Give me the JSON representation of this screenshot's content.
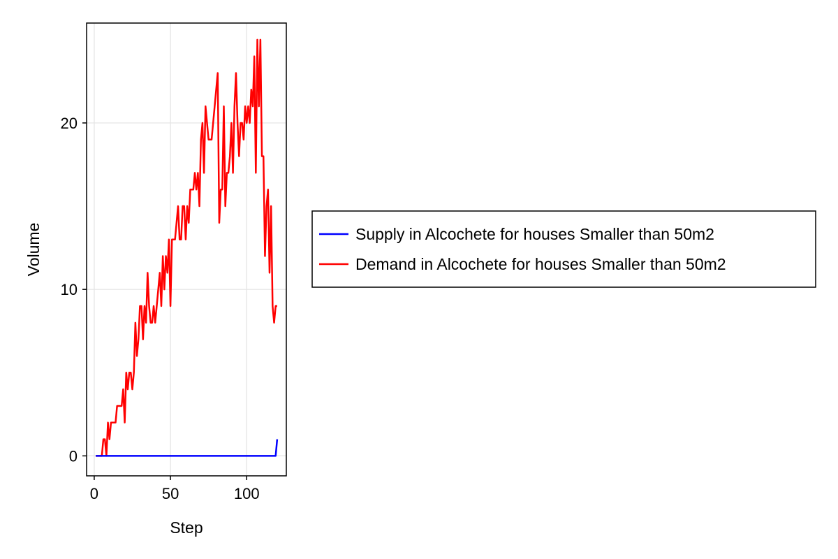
{
  "chart_data": {
    "type": "line",
    "title": "",
    "xlabel": "Step",
    "ylabel": "Volume",
    "xlim": [
      -5,
      126
    ],
    "ylim": [
      -1.2,
      26
    ],
    "xticks": [
      0,
      50,
      100
    ],
    "yticks": [
      0,
      10,
      20
    ],
    "grid": true,
    "legend_position": "right",
    "series": [
      {
        "name": "Supply in Alcochete for houses Smaller than 50m2",
        "color": "#0000ff",
        "x": [
          1,
          119,
          120
        ],
        "y": [
          0,
          0,
          1
        ]
      },
      {
        "name": "Demand in Alcochete for houses Smaller than 50m2",
        "color": "#ff0000",
        "x": [
          1,
          2,
          3,
          4,
          5,
          6,
          7,
          8,
          9,
          10,
          11,
          12,
          13,
          14,
          15,
          16,
          17,
          18,
          19,
          20,
          21,
          22,
          23,
          24,
          25,
          26,
          27,
          28,
          29,
          30,
          31,
          32,
          33,
          34,
          35,
          36,
          37,
          38,
          39,
          40,
          41,
          42,
          43,
          44,
          45,
          46,
          47,
          48,
          49,
          50,
          51,
          52,
          53,
          54,
          55,
          56,
          57,
          58,
          59,
          60,
          61,
          62,
          63,
          64,
          65,
          66,
          67,
          68,
          69,
          70,
          71,
          72,
          73,
          74,
          75,
          76,
          77,
          78,
          79,
          80,
          81,
          82,
          83,
          84,
          85,
          86,
          87,
          88,
          89,
          90,
          91,
          92,
          93,
          94,
          95,
          96,
          97,
          98,
          99,
          100,
          101,
          102,
          103,
          104,
          105,
          106,
          107,
          108,
          109,
          110,
          111,
          112,
          113,
          114,
          115,
          116,
          117,
          118,
          119,
          120
        ],
        "y": [
          0,
          0,
          0,
          0,
          0,
          1,
          1,
          0,
          2,
          1,
          2,
          2,
          2,
          2,
          3,
          3,
          3,
          3,
          4,
          2,
          5,
          4,
          5,
          5,
          4,
          5,
          8,
          6,
          7,
          9,
          9,
          7,
          9,
          8,
          11,
          9,
          8,
          8,
          9,
          8,
          9,
          10,
          11,
          9,
          12,
          10,
          12,
          11,
          13,
          9,
          13,
          13,
          13,
          14,
          15,
          13,
          13,
          15,
          15,
          13,
          15,
          14,
          16,
          16,
          16,
          17,
          16,
          17,
          15,
          19,
          20,
          17,
          21,
          20,
          19,
          19,
          19,
          20,
          21,
          22,
          23,
          14,
          16,
          16,
          21,
          15,
          17,
          17,
          18,
          20,
          17,
          21,
          23,
          20,
          18,
          20,
          20,
          19,
          21,
          20,
          21,
          20,
          22,
          21,
          24,
          17,
          25,
          21,
          25,
          18,
          18,
          12,
          15,
          16,
          11,
          15,
          9,
          8,
          9,
          9
        ]
      }
    ]
  }
}
